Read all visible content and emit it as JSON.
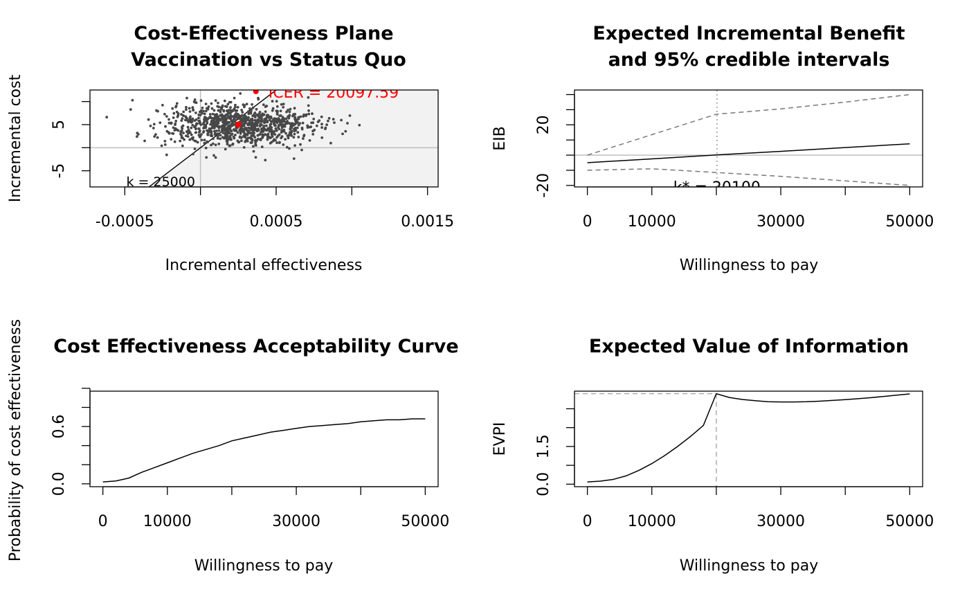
{
  "chart_data": [
    {
      "type": "scatter",
      "title": [
        "Cost-Effectiveness Plane",
        "Vaccination vs Status Quo"
      ],
      "xlabel": "Incremental effectiveness",
      "ylabel": "Incremental cost",
      "xlim": [
        -0.00073,
        0.00157
      ],
      "ylim": [
        -8.5,
        12.5
      ],
      "x_ticks": [
        -0.0005,
        0,
        0.0005,
        0.001,
        0.0015
      ],
      "x_tick_labels": [
        "-0.0005",
        "",
        "0.0005",
        "",
        "0.0015"
      ],
      "y_ticks": [
        -5,
        0,
        5,
        10
      ],
      "y_tick_labels": [
        "-5",
        "",
        "5",
        ""
      ],
      "cloud_center": [
        0.00025,
        5
      ],
      "cloud_sd": [
        0.00025,
        2.3
      ],
      "n_points": 1000,
      "mean_point": [
        0.00025,
        5.02
      ],
      "icer_label": "ICER = 20097.59",
      "wtp_line_k": 25000,
      "wtp_label": "k = 25000",
      "colors": {
        "points": "#474747",
        "icer": "#ff0000",
        "region": "#f2f2f2",
        "axes_ref": "#bebebe"
      }
    },
    {
      "type": "line",
      "title": [
        "Expected Incremental Benefit",
        "and 95% credible intervals"
      ],
      "xlabel": "Willingness to pay",
      "ylabel": "EIB",
      "xlim": [
        -2000,
        52000
      ],
      "ylim": [
        -21,
        43
      ],
      "x_ticks": [
        0,
        10000,
        20000,
        30000,
        40000,
        50000
      ],
      "x_tick_labels": [
        "0",
        "10000",
        "",
        "30000",
        "",
        "50000"
      ],
      "y_ticks": [
        -20,
        -10,
        0,
        10,
        20,
        30,
        40
      ],
      "y_tick_labels": [
        "-20",
        "",
        "",
        "",
        "20",
        "",
        ""
      ],
      "x": [
        0,
        10000,
        20000,
        30000,
        40000,
        50000
      ],
      "series": [
        {
          "values": [
            -5,
            -2.5,
            0.1,
            2.5,
            5,
            7.5
          ],
          "style": "solid"
        },
        {
          "values": [
            0,
            13.5,
            27,
            30.5,
            35,
            40
          ],
          "style": "dashed"
        },
        {
          "values": [
            -10,
            -9,
            -11.5,
            -14,
            -17,
            -20
          ],
          "style": "dashed"
        }
      ],
      "break_even": 20100,
      "break_even_label": "k* = 20100"
    },
    {
      "type": "line",
      "title": [
        "Cost Effectiveness Acceptability Curve"
      ],
      "xlabel": "Willingness to pay",
      "ylabel": "Probability of cost effectiveness",
      "xlim": [
        -2000,
        52000
      ],
      "ylim": [
        -0.03,
        0.97
      ],
      "x_ticks": [
        0,
        10000,
        20000,
        30000,
        40000,
        50000
      ],
      "x_tick_labels": [
        "0",
        "10000",
        "",
        "30000",
        "",
        "50000"
      ],
      "y_ticks": [
        0,
        0.2,
        0.4,
        0.6,
        0.8,
        1.0
      ],
      "y_tick_labels": [
        "0.0",
        "",
        "",
        "0.6",
        "",
        ""
      ],
      "x": [
        0,
        2000,
        4000,
        6000,
        8000,
        10000,
        12000,
        14000,
        16000,
        18000,
        20000,
        22000,
        24000,
        26000,
        28000,
        30000,
        32000,
        34000,
        36000,
        38000,
        40000,
        42000,
        44000,
        46000,
        48000,
        50000
      ],
      "values": [
        0.02,
        0.03,
        0.06,
        0.12,
        0.17,
        0.22,
        0.27,
        0.32,
        0.36,
        0.4,
        0.45,
        0.48,
        0.51,
        0.54,
        0.56,
        0.58,
        0.6,
        0.61,
        0.62,
        0.63,
        0.65,
        0.66,
        0.67,
        0.67,
        0.68,
        0.68
      ]
    },
    {
      "type": "line",
      "title": [
        "Expected Value of Information"
      ],
      "xlabel": "Willingness to pay",
      "ylabel": "EVPI",
      "xlim": [
        -2000,
        52000
      ],
      "ylim": [
        -0.1,
        3.7
      ],
      "x_ticks": [
        0,
        10000,
        20000,
        30000,
        40000,
        50000
      ],
      "x_tick_labels": [
        "0",
        "10000",
        "",
        "30000",
        "",
        "50000"
      ],
      "y_ticks": [
        0,
        0.75,
        1.5,
        2.25,
        3.0
      ],
      "y_tick_labels": [
        "0.0",
        "",
        "1.5",
        "",
        ""
      ],
      "x": [
        0,
        2000,
        4000,
        6000,
        8000,
        10000,
        12000,
        14000,
        16000,
        18000,
        20000,
        22000,
        24000,
        26000,
        28000,
        30000,
        32000,
        34000,
        36000,
        38000,
        40000,
        42000,
        44000,
        46000,
        48000,
        50000
      ],
      "values": [
        0.09,
        0.12,
        0.19,
        0.33,
        0.55,
        0.82,
        1.14,
        1.5,
        1.9,
        2.34,
        3.6,
        3.45,
        3.37,
        3.32,
        3.28,
        3.27,
        3.27,
        3.28,
        3.3,
        3.33,
        3.36,
        3.4,
        3.44,
        3.49,
        3.54,
        3.59
      ],
      "break_even": 20000
    }
  ]
}
